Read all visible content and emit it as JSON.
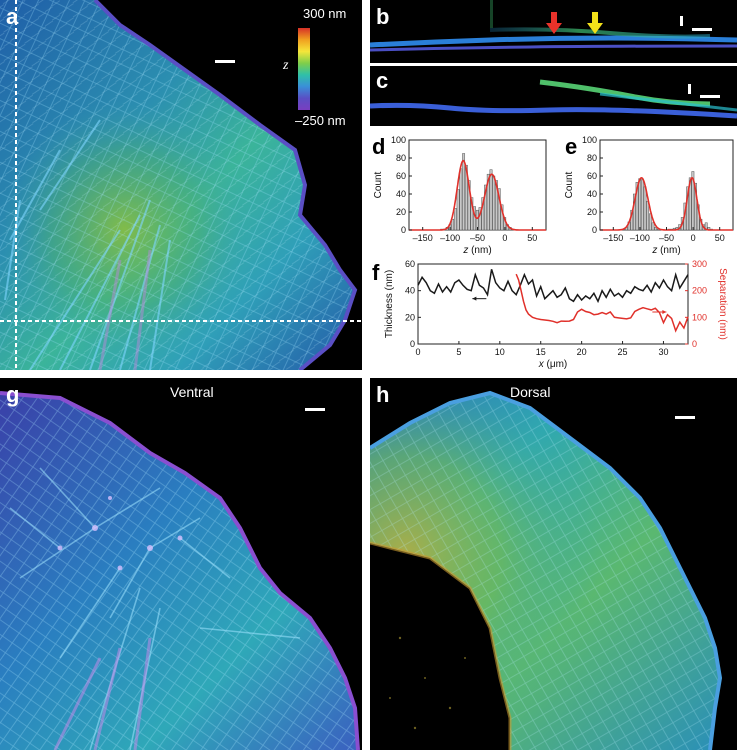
{
  "figure": {
    "panels": {
      "a": {
        "label": "a"
      },
      "b": {
        "label": "b"
      },
      "c": {
        "label": "c"
      },
      "d": {
        "label": "d"
      },
      "e": {
        "label": "e"
      },
      "f": {
        "label": "f"
      },
      "g": {
        "label": "g",
        "caption": "Ventral"
      },
      "h": {
        "label": "h",
        "caption": "Dorsal"
      }
    },
    "colorbar": {
      "top": "300 nm",
      "axis": "z",
      "bottom": "–250 nm"
    },
    "arrows": {
      "red": "#e8322a",
      "yellow": "#f2e01a"
    }
  },
  "chart_data": [
    {
      "id": "d",
      "type": "bar",
      "xlabel": "z (nm)",
      "ylabel": "Count",
      "xlim": [
        -175,
        75
      ],
      "ylim": [
        0,
        100
      ],
      "xticks": [
        -150,
        -100,
        -50,
        0,
        50
      ],
      "yticks": [
        0,
        20,
        40,
        60,
        80,
        100
      ],
      "bin_width": 5,
      "bins_x": [
        -150,
        -145,
        -140,
        -135,
        -130,
        -125,
        -120,
        -115,
        -110,
        -105,
        -100,
        -95,
        -90,
        -85,
        -80,
        -75,
        -70,
        -65,
        -60,
        -55,
        -50,
        -45,
        -40,
        -35,
        -30,
        -25,
        -20,
        -15,
        -10,
        -5,
        0,
        5,
        10,
        15,
        20,
        25,
        30,
        35,
        40,
        45,
        50
      ],
      "counts": [
        0,
        0,
        0,
        0,
        0,
        0,
        0,
        1,
        1,
        3,
        6,
        12,
        24,
        45,
        68,
        85,
        72,
        55,
        36,
        26,
        22,
        25,
        36,
        50,
        62,
        67,
        60,
        55,
        46,
        28,
        14,
        6,
        3,
        1,
        0,
        0,
        0,
        0,
        0,
        0,
        0
      ],
      "fit": {
        "type": "double-gaussian",
        "color": "#e0302a",
        "peaks": [
          {
            "mu": -76,
            "sigma": 11,
            "amp": 77
          },
          {
            "mu": -24,
            "sigma": 13,
            "amp": 62
          }
        ]
      }
    },
    {
      "id": "e",
      "type": "bar",
      "xlabel": "z (nm)",
      "ylabel": "Count",
      "xlim": [
        -175,
        75
      ],
      "ylim": [
        0,
        100
      ],
      "xticks": [
        -150,
        -100,
        -50,
        0,
        50
      ],
      "yticks": [
        0,
        20,
        40,
        60,
        80,
        100
      ],
      "bin_width": 5,
      "bins_x": [
        -150,
        -145,
        -140,
        -135,
        -130,
        -125,
        -120,
        -115,
        -110,
        -105,
        -100,
        -95,
        -90,
        -85,
        -80,
        -75,
        -70,
        -65,
        -60,
        -55,
        -50,
        -45,
        -40,
        -35,
        -30,
        -25,
        -20,
        -15,
        -10,
        -5,
        0,
        5,
        10,
        15,
        20,
        25,
        30,
        35,
        40,
        45,
        50
      ],
      "counts": [
        0,
        0,
        0,
        0,
        1,
        3,
        9,
        22,
        40,
        53,
        57,
        56,
        48,
        32,
        18,
        8,
        3,
        1,
        0,
        0,
        0,
        1,
        1,
        2,
        3,
        6,
        14,
        30,
        48,
        58,
        65,
        52,
        28,
        12,
        6,
        8,
        3,
        1,
        0,
        0,
        0
      ],
      "fit": {
        "type": "double-gaussian",
        "color": "#e0302a",
        "peaks": [
          {
            "mu": -97,
            "sigma": 12,
            "amp": 58
          },
          {
            "mu": -2,
            "sigma": 9,
            "amp": 58
          }
        ]
      }
    },
    {
      "id": "f",
      "type": "line",
      "xlabel": "x (μm)",
      "ylabel": "Thickness (nm)",
      "ylabel_right": "Separation (nm)",
      "xlim": [
        0,
        33
      ],
      "ylim": [
        0,
        60
      ],
      "ylim_right": [
        0,
        300
      ],
      "xticks": [
        0,
        5,
        10,
        15,
        20,
        25,
        30
      ],
      "yticks": [
        0,
        20,
        40,
        60
      ],
      "yticks_right": [
        0,
        100,
        200,
        300
      ],
      "series": [
        {
          "axis": "left",
          "color": "#1a1a1a",
          "x": [
            0,
            0.5,
            1,
            1.5,
            2,
            2.5,
            3,
            3.5,
            4,
            4.5,
            5,
            5.5,
            6,
            6.5,
            7,
            7.5,
            8,
            8.5,
            9,
            9.5,
            10,
            10.5,
            11,
            11.5,
            12,
            12.5,
            13,
            13.5,
            14,
            14.5,
            15,
            15.5,
            16,
            16.5,
            17,
            17.5,
            18,
            18.5,
            19,
            19.5,
            20,
            20.5,
            21,
            21.5,
            22,
            22.5,
            23,
            23.5,
            24,
            24.5,
            25,
            25.5,
            26,
            26.5,
            27,
            27.5,
            28,
            28.5,
            29,
            29.5,
            30,
            30.5,
            31,
            31.5,
            32,
            32.5,
            33
          ],
          "values": [
            44,
            50,
            46,
            40,
            38,
            45,
            39,
            43,
            39,
            46,
            48,
            44,
            41,
            40,
            52,
            44,
            42,
            37,
            56,
            46,
            42,
            40,
            47,
            40,
            37,
            44,
            52,
            45,
            48,
            36,
            43,
            34,
            37,
            40,
            35,
            37,
            42,
            34,
            32,
            37,
            33,
            36,
            34,
            38,
            32,
            40,
            35,
            41,
            36,
            38,
            35,
            40,
            38,
            43,
            41,
            40,
            44,
            39,
            46,
            42,
            48,
            43,
            40,
            52,
            42,
            47,
            52
          ]
        },
        {
          "axis": "right",
          "color": "#e0302a",
          "x": [
            12,
            12.3,
            12.6,
            12.9,
            13.2,
            13.5,
            14,
            14.5,
            15,
            15.5,
            16,
            16.5,
            17,
            17.5,
            18,
            18.5,
            19,
            19.5,
            20,
            20.5,
            21,
            21.5,
            22,
            22.5,
            23,
            23.5,
            24,
            24.5,
            25,
            25.5,
            26,
            26.5,
            27,
            27.5,
            28,
            28.5,
            29,
            29.5,
            30,
            30.5,
            31,
            31.5,
            32,
            32.5,
            33
          ],
          "values": [
            262,
            240,
            200,
            160,
            128,
            112,
            100,
            95,
            92,
            90,
            88,
            85,
            80,
            86,
            85,
            86,
            92,
            120,
            130,
            122,
            118,
            110,
            112,
            118,
            112,
            120,
            100,
            98,
            96,
            94,
            98,
            122,
            130,
            136,
            132,
            128,
            134,
            118,
            80,
            110,
            96,
            50,
            82,
            60,
            102
          ]
        }
      ],
      "annotations": [
        {
          "type": "arrow",
          "direction": "left",
          "x": 7.5,
          "y_left": 34,
          "color": "#1a1a1a"
        },
        {
          "type": "arrow",
          "direction": "right",
          "x": 29.5,
          "y_left": 24,
          "color": "#e0302a"
        }
      ]
    }
  ]
}
